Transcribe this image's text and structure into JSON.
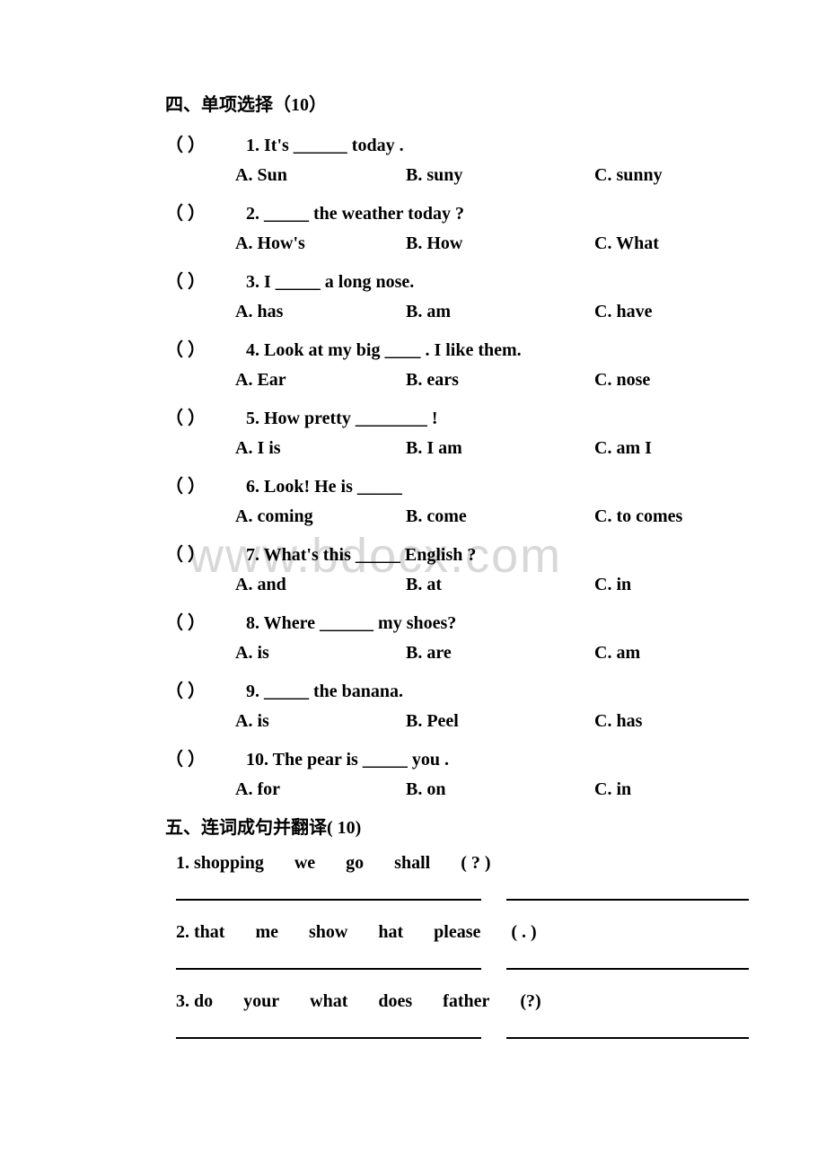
{
  "watermark": "www.bdocx.com",
  "section4": {
    "title": "四、单项选择（10）",
    "questions": [
      {
        "num": "1.",
        "stem": "It's ______ today .",
        "a": "A. Sun",
        "b": "B. suny",
        "c": "C. sunny"
      },
      {
        "num": "2.",
        "stem": "_____ the weather today ?",
        "a": "A. How's",
        "b": "B. How",
        "c": "C. What"
      },
      {
        "num": "3.",
        "stem": "  I _____ a long nose.",
        "a": "A. has",
        "b": "B. am",
        "c": "C. have"
      },
      {
        "num": "4.",
        "stem": "  Look at my big ____ . I like them.",
        "a": "A. Ear",
        "b": "B. ears",
        "c": "C. nose"
      },
      {
        "num": "5.",
        "stem": "  How pretty ________   !",
        "a": "A. I is",
        "b": "B. I am",
        "c": "C. am I"
      },
      {
        "num": "6.",
        "stem": "  Look! He is _____",
        "a": "A. coming",
        "b": "B. come",
        "c": "C. to comes"
      },
      {
        "num": "7.",
        "stem": "  What's this _____ English ?",
        "a": "A. and",
        "b": "B. at",
        "c": "C. in"
      },
      {
        "num": "8.",
        "stem": "  Where ______ my shoes?",
        "a": "A.   is",
        "b": "B. are",
        "c": "C. am"
      },
      {
        "num": "9.",
        "stem": "  _____ the banana.",
        "a": "A. is",
        "b": "B. Peel",
        "c": "C. has"
      },
      {
        "num": "10.",
        "stem": "  The pear is _____ you .",
        "a": "A. for",
        "b": "B. on",
        "c": "C. in"
      }
    ],
    "paren_text": "（       ）"
  },
  "section5": {
    "title": "五、连词成句并翻译( 10)",
    "items": [
      {
        "num": "1.",
        "words": [
          "shopping",
          "we",
          "go",
          "shall",
          "( ? )"
        ]
      },
      {
        "num": "2.",
        "words": [
          "that",
          "me",
          "show",
          "hat",
          "please",
          "( . )"
        ]
      },
      {
        "num": "3.",
        "words": [
          "do",
          "your",
          "what",
          "does",
          "father",
          "(?)"
        ]
      }
    ]
  },
  "colors": {
    "text": "#000000",
    "background": "#ffffff",
    "watermark": "#d8d8d8",
    "line": "#000000"
  },
  "typography": {
    "body_fontsize": 20,
    "watermark_fontsize": 54,
    "font_weight": "bold"
  }
}
